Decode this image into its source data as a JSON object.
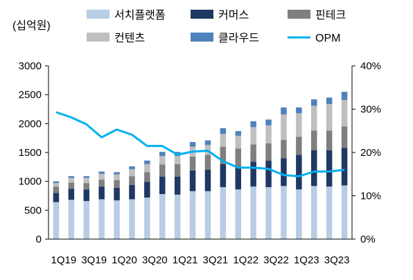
{
  "chart_data": {
    "type": "bar",
    "stacked": true,
    "unit_label": "(십억원)",
    "categories": [
      "1Q19",
      "2Q19",
      "3Q19",
      "4Q19",
      "1Q20",
      "2Q20",
      "3Q20",
      "4Q20",
      "1Q21",
      "2Q21",
      "3Q21",
      "4Q21",
      "1Q22",
      "2Q22",
      "3Q22",
      "4Q22",
      "1Q23",
      "2Q23",
      "3Q23",
      "4Q23"
    ],
    "x_tick_labels": [
      "1Q19",
      "3Q19",
      "1Q20",
      "3Q20",
      "1Q21",
      "3Q21",
      "1Q22",
      "3Q22",
      "1Q23",
      "3Q23"
    ],
    "series": [
      {
        "name": "서치플랫폼",
        "color": "#b8cce4",
        "values": [
          640,
          680,
          660,
          690,
          670,
          690,
          720,
          780,
          770,
          830,
          830,
          900,
          860,
          910,
          900,
          920,
          860,
          920,
          910,
          930
        ]
      },
      {
        "name": "커머스",
        "color": "#1f3864",
        "values": [
          160,
          190,
          200,
          220,
          220,
          250,
          270,
          300,
          310,
          360,
          370,
          400,
          400,
          430,
          460,
          480,
          600,
          620,
          630,
          650
        ]
      },
      {
        "name": "핀테크",
        "color": "#7f7f7f",
        "values": [
          110,
          110,
          110,
          120,
          130,
          150,
          170,
          210,
          220,
          240,
          260,
          300,
          310,
          300,
          300,
          320,
          310,
          340,
          340,
          370
        ]
      },
      {
        "name": "컨텐츠",
        "color": "#bfbfbf",
        "values": [
          60,
          80,
          90,
          100,
          100,
          120,
          140,
          150,
          140,
          170,
          170,
          220,
          220,
          300,
          310,
          440,
          410,
          430,
          460,
          460
        ]
      },
      {
        "name": "클라우드",
        "color": "#4f81bd",
        "values": [
          30,
          30,
          30,
          40,
          40,
          50,
          60,
          70,
          70,
          80,
          80,
          100,
          80,
          100,
          100,
          120,
          100,
          110,
          110,
          140
        ]
      }
    ],
    "line": {
      "name": "OPM",
      "color": "#00b0f0",
      "axis": "right",
      "values": [
        29.3,
        28.1,
        26.5,
        23.5,
        25.3,
        24.1,
        21.5,
        21.5,
        19.5,
        20.2,
        20.4,
        18.0,
        16.5,
        16.5,
        16.2,
        14.8,
        14.5,
        15.6,
        15.6,
        16.0
      ]
    },
    "y_left": {
      "min": 0,
      "max": 3000,
      "ticks": [
        0,
        500,
        1000,
        1500,
        2000,
        2500,
        3000
      ]
    },
    "y_right": {
      "min": 0,
      "max": 40,
      "ticks": [
        "0%",
        "10%",
        "20%",
        "30%",
        "40%"
      ]
    },
    "legend": {
      "placement": "top",
      "columns": 3,
      "order": [
        "서치플랫폼",
        "커머스",
        "핀테크",
        "컨텐츠",
        "클라우드",
        "OPM"
      ]
    },
    "grid": false
  }
}
